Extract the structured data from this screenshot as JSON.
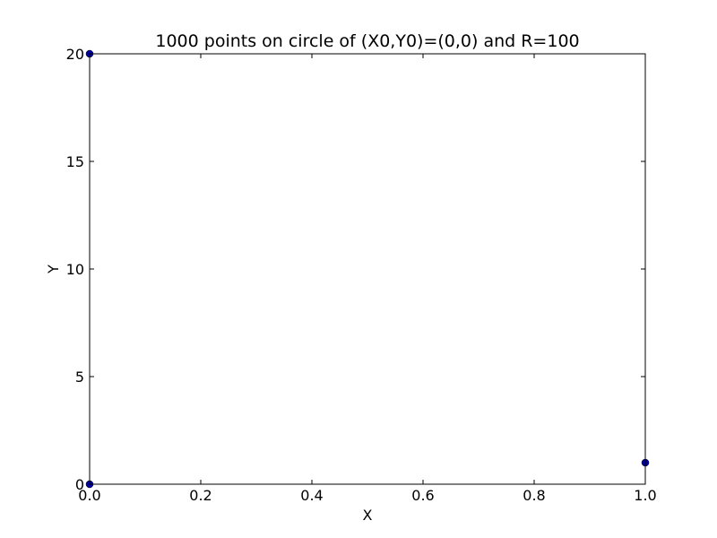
{
  "chart_data": {
    "type": "scatter",
    "title": "1000 points on circle of (X0,Y0)=(0,0) and R=100",
    "xlabel": "X",
    "ylabel": "Y",
    "xlim": [
      0.0,
      1.0
    ],
    "ylim": [
      0,
      20
    ],
    "x_ticks": [
      0.0,
      0.2,
      0.4,
      0.6,
      0.8,
      1.0
    ],
    "x_tick_labels": [
      "0.0",
      "0.2",
      "0.4",
      "0.6",
      "0.8",
      "1.0"
    ],
    "y_ticks": [
      0,
      5,
      10,
      15,
      20
    ],
    "y_tick_labels": [
      "0",
      "5",
      "10",
      "15",
      "20"
    ],
    "grid": false,
    "legend": "none",
    "series": [
      {
        "color": "#0000a0",
        "points": [
          {
            "x": 0.0,
            "y": 0
          },
          {
            "x": 0.0,
            "y": 20
          },
          {
            "x": 1.0,
            "y": 1
          }
        ]
      }
    ]
  }
}
